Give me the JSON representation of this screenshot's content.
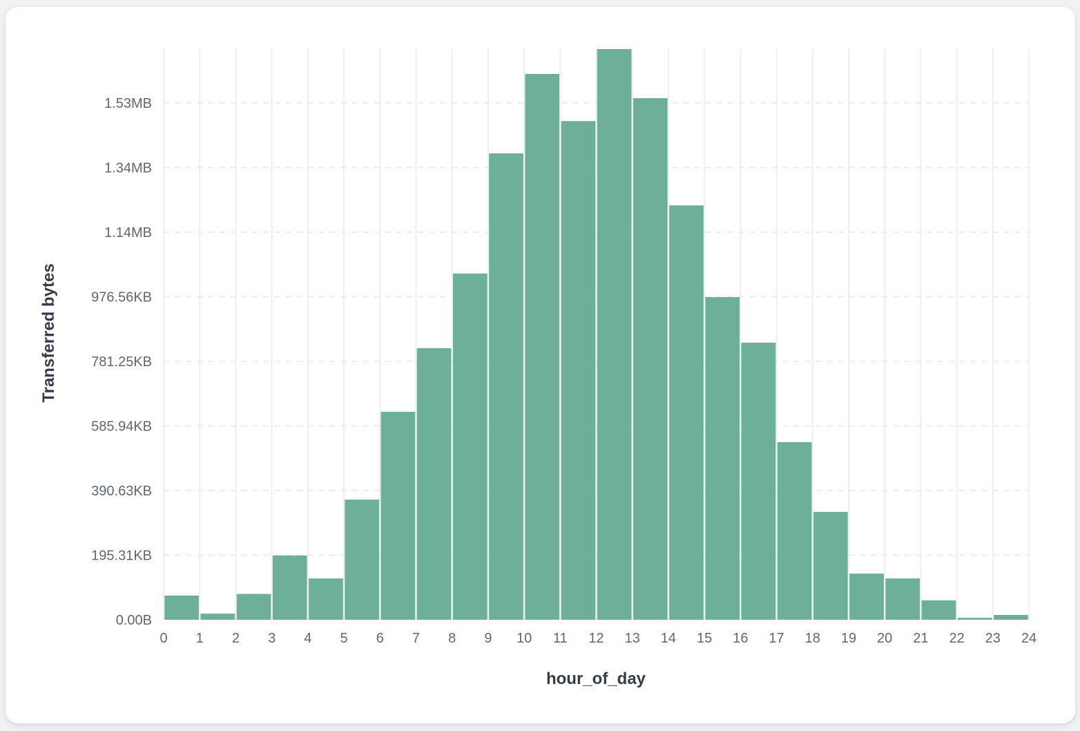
{
  "page": {
    "background_color": "#f0f2f4",
    "card_color": "#ffffff"
  },
  "chart_data": {
    "type": "bar",
    "variant": "histogram",
    "title": "",
    "xlabel": "hour_of_day",
    "ylabel": "Transferred bytes",
    "categories": [
      0,
      1,
      2,
      3,
      4,
      5,
      6,
      7,
      8,
      9,
      10,
      11,
      12,
      13,
      14,
      15,
      16,
      17,
      18,
      19,
      20,
      21,
      22,
      23
    ],
    "values": [
      75000,
      19000,
      80000,
      199000,
      128000,
      372000,
      644000,
      841000,
      1072000,
      1444000,
      1690000,
      1544000,
      1767000,
      1615000,
      1283000,
      999000,
      858000,
      550000,
      334000,
      143000,
      128000,
      60000,
      6000,
      15000
    ],
    "values_unit": "bytes",
    "x_tick_labels": [
      "0",
      "1",
      "2",
      "3",
      "4",
      "5",
      "6",
      "7",
      "8",
      "9",
      "10",
      "11",
      "12",
      "13",
      "14",
      "15",
      "16",
      "17",
      "18",
      "19",
      "20",
      "21",
      "22",
      "23",
      "24"
    ],
    "y_ticks": [
      {
        "value": 0,
        "label": "0.00B"
      },
      {
        "value": 200000,
        "label": "195.31KB"
      },
      {
        "value": 400000,
        "label": "390.63KB"
      },
      {
        "value": 600000,
        "label": "585.94KB"
      },
      {
        "value": 800000,
        "label": "781.25KB"
      },
      {
        "value": 1000000,
        "label": "976.56KB"
      },
      {
        "value": 1200000,
        "label": "1.14MB"
      },
      {
        "value": 1400000,
        "label": "1.34MB"
      },
      {
        "value": 1600000,
        "label": "1.53MB"
      }
    ],
    "xlim": [
      0,
      24
    ],
    "ylim": [
      0,
      1767000
    ],
    "grid": {
      "vertical_style": "solid",
      "horizontal_style": "dashed",
      "vertical_color": "#eceef2",
      "horizontal_color": "#e4e7ec"
    },
    "legend": null,
    "bar_color": "#6cb09a",
    "tick_label_color": "#5e6673",
    "axis_title_color": "#363d4a"
  }
}
